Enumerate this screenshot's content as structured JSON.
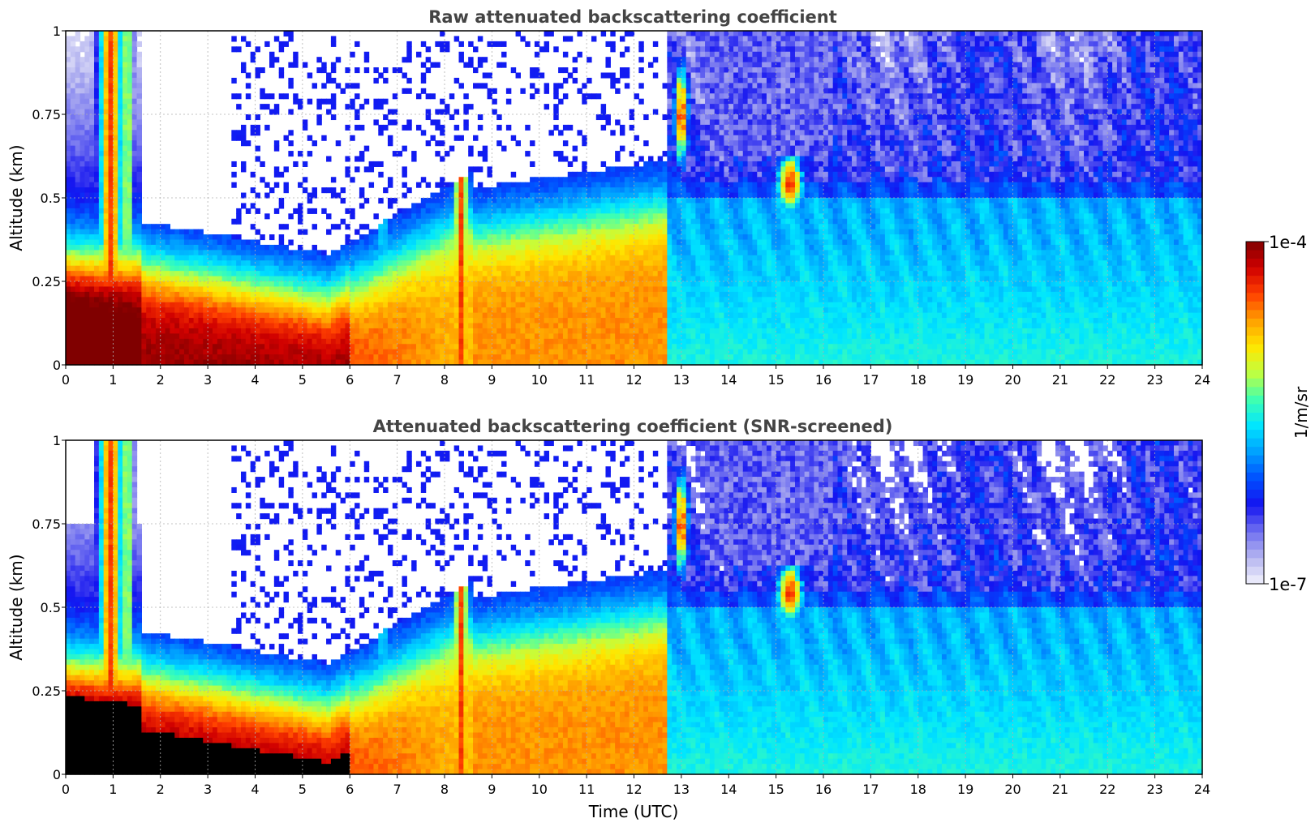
{
  "chart_data": [
    {
      "type": "heatmap",
      "title": "Raw attenuated backscattering coefficient",
      "xlabel": "",
      "ylabel": "Altitude (km)",
      "xlim": [
        0,
        24
      ],
      "ylim": [
        0,
        1
      ],
      "xticks": [
        "0",
        "1",
        "2",
        "3",
        "4",
        "5",
        "6",
        "7",
        "8",
        "9",
        "10",
        "11",
        "12",
        "13",
        "14",
        "15",
        "16",
        "17",
        "18",
        "19",
        "20",
        "21",
        "22",
        "23",
        "24"
      ],
      "yticks": [
        "0",
        "0.25",
        "0.5",
        "0.75",
        "1"
      ],
      "grid": true,
      "screened": false
    },
    {
      "type": "heatmap",
      "title": "Attenuated backscattering coefficient (SNR-screened)",
      "xlabel": "Time (UTC)",
      "ylabel": "Altitude (km)",
      "xlim": [
        0,
        24
      ],
      "ylim": [
        0,
        1
      ],
      "xticks": [
        "0",
        "1",
        "2",
        "3",
        "4",
        "5",
        "6",
        "7",
        "8",
        "9",
        "10",
        "11",
        "12",
        "13",
        "14",
        "15",
        "16",
        "17",
        "18",
        "19",
        "20",
        "21",
        "22",
        "23",
        "24"
      ],
      "yticks": [
        "0",
        "0.25",
        "0.5",
        "0.75",
        "1"
      ],
      "grid": true,
      "screened": true
    }
  ],
  "colorbar": {
    "label": "1/m/sr",
    "max_label": "1e-4",
    "min_label": "1e-7",
    "scale": "log",
    "colormap": [
      "#f2f2fc",
      "#b4b4f0",
      "#6e6ef0",
      "#1414f0",
      "#0050ff",
      "#00a0ff",
      "#00e6ff",
      "#40ffb0",
      "#c0ff40",
      "#ffe600",
      "#ffa000",
      "#ff4000",
      "#d00000",
      "#800000"
    ]
  }
}
